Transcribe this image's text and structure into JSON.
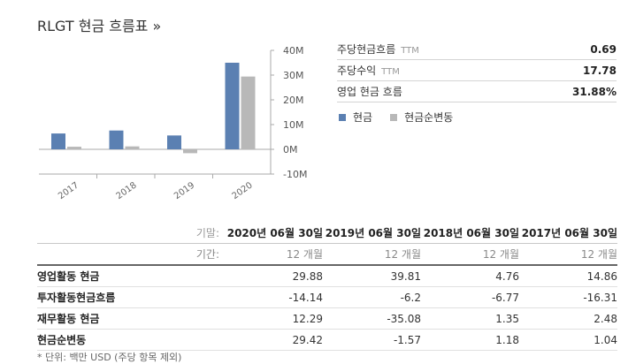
{
  "page": {
    "title": "RLGT 현금 흐름표 »"
  },
  "chart_data": {
    "type": "bar",
    "categories": [
      "2017",
      "2018",
      "2019",
      "2020"
    ],
    "series": [
      {
        "name": "현금",
        "values": [
          6.4,
          7.6,
          5.6,
          35.0
        ],
        "color": "#5b80b2"
      },
      {
        "name": "현금순변동",
        "values": [
          1.04,
          1.18,
          -1.57,
          29.42
        ],
        "color": "#b8b8b8"
      }
    ],
    "ylim": [
      -10,
      40
    ],
    "yticks": [
      "40M",
      "30M",
      "20M",
      "10M",
      "0M",
      "-10M"
    ],
    "ytick_values": [
      40,
      30,
      20,
      10,
      0,
      -10
    ]
  },
  "kpis": [
    {
      "label": "주당현금흐름",
      "ttm": "TTM",
      "value": "0.69"
    },
    {
      "label": "주당수익",
      "ttm": "TTM",
      "value": "17.78"
    },
    {
      "label": "영업 현금 흐름",
      "ttm": "",
      "value": "31.88%"
    }
  ],
  "legend": [
    {
      "label": "현금",
      "color": "#5b80b2"
    },
    {
      "label": "현금순변동",
      "color": "#b8b8b8"
    }
  ],
  "table": {
    "period_end_label": "기말:",
    "period_label": "기간:",
    "dates": [
      "2020년 06월 30일",
      "2019년 06월 30일",
      "2018년 06월 30일",
      "2017년 06월 30일"
    ],
    "periods": [
      "12 개월",
      "12 개월",
      "12 개월",
      "12 개월"
    ],
    "rows": [
      {
        "label": "영업활동 현금",
        "values": [
          "29.88",
          "39.81",
          "4.76",
          "14.86"
        ]
      },
      {
        "label": "투자활동현금흐름",
        "values": [
          "-14.14",
          "-6.2",
          "-6.77",
          "-16.31"
        ]
      },
      {
        "label": "재무활동 현금",
        "values": [
          "12.29",
          "-35.08",
          "1.35",
          "2.48"
        ]
      },
      {
        "label": "현금순변동",
        "values": [
          "29.42",
          "-1.57",
          "1.18",
          "1.04"
        ]
      }
    ]
  },
  "footnote": "* 단위: 백만 USD (주당 항목 제외)"
}
